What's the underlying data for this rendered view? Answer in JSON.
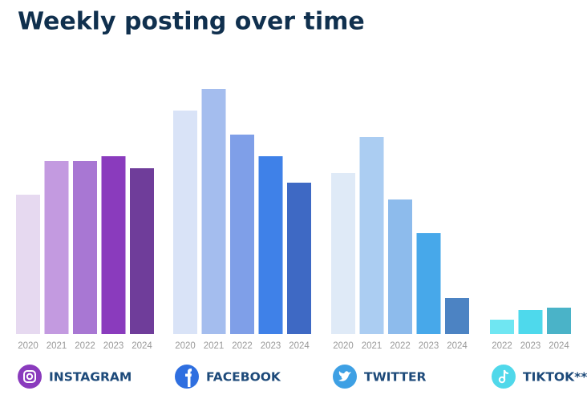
{
  "chart_data": {
    "type": "bar",
    "title": "Weekly posting over time",
    "ylim": [
      0,
      11
    ],
    "groups": [
      {
        "name": "INSTAGRAM",
        "icon_color": "#8a3bbd",
        "categories": [
          "2020",
          "2021",
          "2022",
          "2023",
          "2024"
        ],
        "values": [
          5.8,
          7.2,
          7.2,
          7.4,
          6.9
        ],
        "colors": [
          "#e6d9f0",
          "#c39ae0",
          "#a877d3",
          "#8a3bbd",
          "#6f3d9a"
        ]
      },
      {
        "name": "FACEBOOK",
        "icon_color": "#2f6fe0",
        "categories": [
          "2020",
          "2021",
          "2022",
          "2023",
          "2024"
        ],
        "values": [
          9.3,
          10.2,
          8.3,
          7.4,
          6.3
        ],
        "colors": [
          "#d9e3f7",
          "#a4bdee",
          "#7f9fe8",
          "#3f81e8",
          "#3e69c4"
        ]
      },
      {
        "name": "TWITTER",
        "icon_color": "#3ea0e4",
        "categories": [
          "2020",
          "2021",
          "2022",
          "2023",
          "2024"
        ],
        "values": [
          6.7,
          8.2,
          5.6,
          4.2,
          1.5
        ],
        "colors": [
          "#dfeaf7",
          "#abcdf2",
          "#8dbbec",
          "#47a8ea",
          "#4c83c3"
        ]
      },
      {
        "name": "TIKTOK**",
        "icon_color": "#50d8ea",
        "categories": [
          "2022",
          "2023",
          "2024"
        ],
        "values": [
          0.6,
          1.0,
          1.1
        ],
        "colors": [
          "#6fe6f2",
          "#4ed9ec",
          "#4ab3c8"
        ]
      }
    ]
  }
}
